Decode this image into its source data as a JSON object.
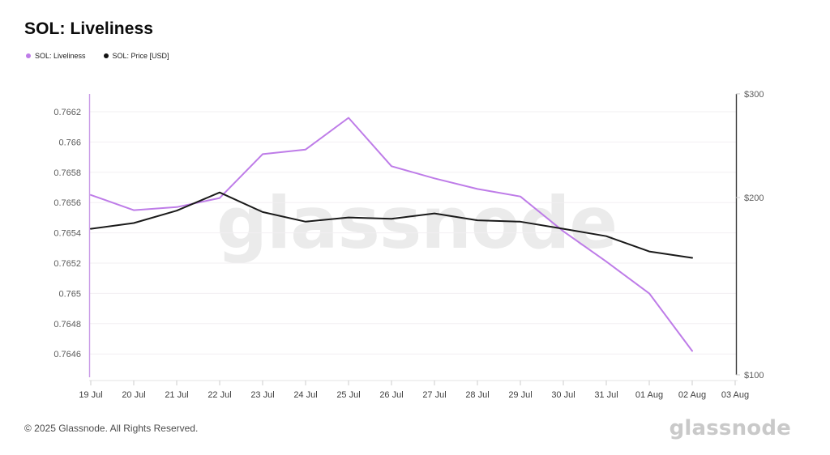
{
  "header": {
    "title": "SOL: Liveliness"
  },
  "legend": [
    {
      "label": "SOL: Liveliness",
      "color": "#be7ce8"
    },
    {
      "label": "SOL: Price [USD]",
      "color": "#111111"
    }
  ],
  "watermark": "glassnode",
  "footer": {
    "copyright": "© 2025 Glassnode. All Rights Reserved.",
    "logo": "glassnode"
  },
  "colors": {
    "liveliness_line": "#be7ce8",
    "price_line": "#1a1a1a",
    "left_axis_line": "#c99ae6",
    "right_axis_line": "#3a3a3a",
    "gridline": "#f2eff2",
    "x_axis_line": "#e3e3e3",
    "tick_mark": "#cccccc",
    "axis_label": "#5c5c5c",
    "x_label": "#3f3f3f",
    "watermark": "#ebebeb"
  },
  "chart_data": {
    "type": "line",
    "title": "SOL: Liveliness",
    "x_labels": [
      "19 Jul",
      "20 Jul",
      "21 Jul",
      "22 Jul",
      "23 Jul",
      "24 Jul",
      "25 Jul",
      "26 Jul",
      "27 Jul",
      "28 Jul",
      "29 Jul",
      "30 Jul",
      "31 Jul",
      "01 Aug",
      "02 Aug",
      "03 Aug"
    ],
    "left_axis": {
      "scale": "linear",
      "tick_labels": [
        "0.7662",
        "0.766",
        "0.7658",
        "0.7656",
        "0.7654",
        "0.7652",
        "0.765",
        "0.7648",
        "0.7646"
      ],
      "range": [
        0.7646,
        0.7662
      ]
    },
    "right_axis": {
      "scale": "log",
      "ticks": [
        {
          "label": "$300",
          "value": 300
        },
        {
          "label": "$200",
          "value": 200
        },
        {
          "label": "$100",
          "value": 100
        }
      ],
      "range": [
        100,
        300
      ]
    },
    "grid": true,
    "legend_position": "top-left",
    "series": [
      {
        "name": "SOL: Liveliness",
        "axis": "left",
        "color": "#be7ce8",
        "x": [
          "19 Jul",
          "20 Jul",
          "21 Jul",
          "22 Jul",
          "23 Jul",
          "24 Jul",
          "25 Jul",
          "26 Jul",
          "27 Jul",
          "28 Jul",
          "29 Jul",
          "30 Jul",
          "31 Jul",
          "01 Aug",
          "02 Aug"
        ],
        "values": [
          0.76565,
          0.76555,
          0.76557,
          0.76563,
          0.76592,
          0.76595,
          0.76616,
          0.76584,
          0.76576,
          0.76569,
          0.76564,
          0.76541,
          0.76521,
          0.765,
          0.76462
        ]
      },
      {
        "name": "SOL: Price [USD]",
        "axis": "right",
        "color": "#1a1a1a",
        "x": [
          "19 Jul",
          "20 Jul",
          "21 Jul",
          "22 Jul",
          "23 Jul",
          "24 Jul",
          "25 Jul",
          "26 Jul",
          "27 Jul",
          "28 Jul",
          "29 Jul",
          "30 Jul",
          "31 Jul",
          "01 Aug",
          "02 Aug"
        ],
        "values": [
          177,
          181,
          190,
          204,
          189,
          182,
          185,
          184,
          188,
          183,
          182,
          177,
          172,
          162,
          158
        ]
      }
    ]
  }
}
